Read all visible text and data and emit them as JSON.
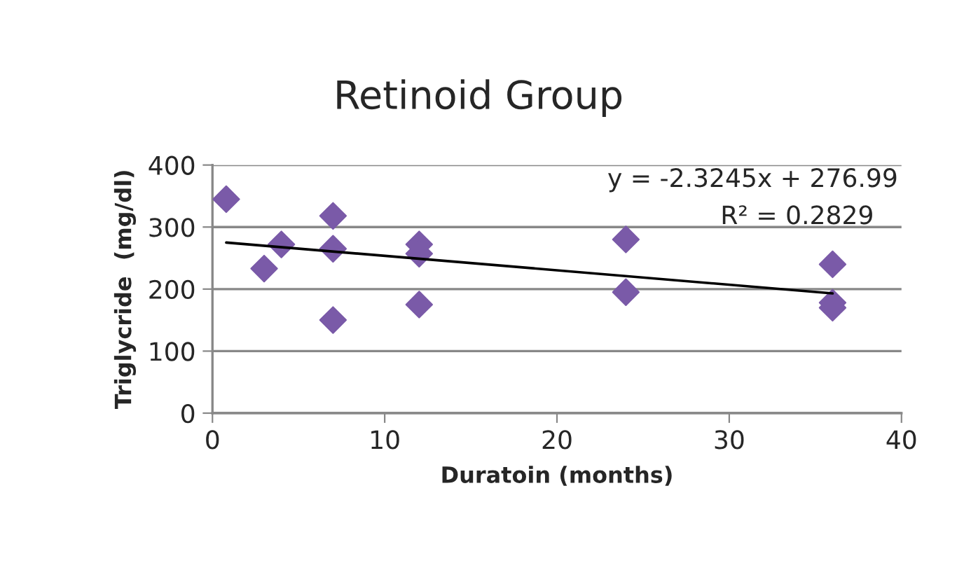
{
  "chart_data": {
    "type": "scatter",
    "title": "Retinoid Group",
    "xlabel": "Duratoin (months)",
    "ylabel": "Triglycride  (mg/dl)",
    "series": [
      {
        "color": "#7a5aa8",
        "marker": "diamond",
        "x": [
          0.8,
          3,
          4,
          7,
          7,
          7,
          12,
          12,
          12,
          24,
          24,
          36,
          36,
          36
        ],
        "values": [
          345,
          233,
          272,
          318,
          265,
          150,
          272,
          257,
          175,
          280,
          195,
          240,
          178,
          170
        ]
      },
      {
        "type": "line",
        "color": "#000000",
        "marker": "none",
        "line_style": "solid",
        "x": [
          0.8,
          36
        ],
        "values": [
          275,
          193
        ]
      }
    ],
    "annotations": [
      "y = -2.3245x + 276.99",
      "R² = 0.2829"
    ],
    "xlim": [
      0,
      40
    ],
    "xticks": [
      0,
      10,
      20,
      30,
      40
    ],
    "ylim": [
      0,
      400
    ],
    "yticks": [
      0,
      100,
      200,
      300,
      400
    ],
    "grid": "y",
    "legend": false
  }
}
